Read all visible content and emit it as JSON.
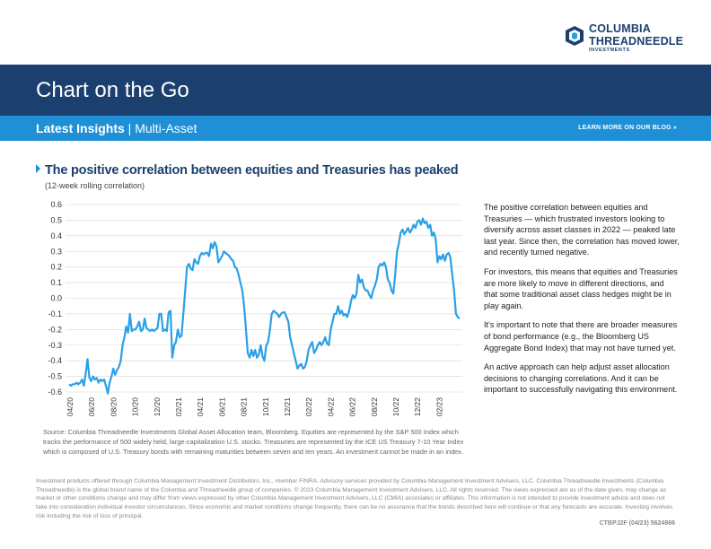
{
  "logo": {
    "line1": "COLUMBIA",
    "line2": "THREADNEEDLE",
    "line3": "INVESTMENTS"
  },
  "header": {
    "title": "Chart on the Go"
  },
  "subbar": {
    "category": "Latest Insights",
    "separator": " | ",
    "topic": "Multi-Asset",
    "link": "LEARN MORE ON OUR BLOG"
  },
  "colors": {
    "navy": "#1b3f6e",
    "blue": "#1f8fd6",
    "line": "#2aa0e6"
  },
  "icons": {
    "heading_arrow": "triangle-right-icon",
    "link_arrow": "double-chevron-right-icon"
  },
  "chart_data": {
    "type": "line",
    "title": "The positive correlation between equities and Treasuries has peaked",
    "subtitle": "(12-week rolling correlation)",
    "ylim": [
      -0.6,
      0.6
    ],
    "yticks": [
      "0.6",
      "0.5",
      "0.4",
      "0.3",
      "0.2",
      "0.1",
      "0.0",
      "-0.1",
      "-0.2",
      "-0.3",
      "-0.4",
      "-0.5",
      "-0.6"
    ],
    "xticks": [
      "04/20",
      "06/20",
      "08/20",
      "10/20",
      "12/20",
      "02/21",
      "04/21",
      "06/21",
      "08/21",
      "10/21",
      "12/21",
      "02/22",
      "04/22",
      "06/22",
      "08/22",
      "10/22",
      "12/22",
      "02/23"
    ],
    "grid": true,
    "series": [
      {
        "name": "",
        "values": [
          -0.55,
          -0.56,
          -0.55,
          -0.55,
          -0.54,
          -0.55,
          -0.54,
          -0.52,
          -0.56,
          -0.48,
          -0.39,
          -0.51,
          -0.53,
          -0.5,
          -0.52,
          -0.51,
          -0.54,
          -0.52,
          -0.53,
          -0.52,
          -0.56,
          -0.61,
          -0.54,
          -0.5,
          -0.45,
          -0.49,
          -0.46,
          -0.44,
          -0.4,
          -0.3,
          -0.25,
          -0.18,
          -0.22,
          -0.1,
          -0.21,
          -0.2,
          -0.2,
          -0.18,
          -0.15,
          -0.21,
          -0.2,
          -0.13,
          -0.19,
          -0.2,
          -0.21,
          -0.2,
          -0.21,
          -0.2,
          -0.19,
          -0.1,
          -0.1,
          -0.21,
          -0.2,
          -0.21,
          -0.09,
          -0.08,
          -0.38,
          -0.3,
          -0.28,
          -0.2,
          -0.25,
          -0.24,
          -0.1,
          0.05,
          0.2,
          0.22,
          0.19,
          0.18,
          0.25,
          0.23,
          0.22,
          0.27,
          0.29,
          0.28,
          0.29,
          0.29,
          0.27,
          0.35,
          0.32,
          0.36,
          0.33,
          0.23,
          0.25,
          0.27,
          0.3,
          0.29,
          0.28,
          0.27,
          0.25,
          0.24,
          0.2,
          0.19,
          0.15,
          0.1,
          0.05,
          -0.05,
          -0.2,
          -0.35,
          -0.38,
          -0.33,
          -0.37,
          -0.33,
          -0.38,
          -0.36,
          -0.3,
          -0.37,
          -0.4,
          -0.3,
          -0.28,
          -0.2,
          -0.1,
          -0.08,
          -0.09,
          -0.1,
          -0.12,
          -0.1,
          -0.09,
          -0.09,
          -0.12,
          -0.15,
          -0.25,
          -0.3,
          -0.35,
          -0.4,
          -0.45,
          -0.43,
          -0.42,
          -0.45,
          -0.44,
          -0.4,
          -0.33,
          -0.3,
          -0.28,
          -0.35,
          -0.33,
          -0.3,
          -0.28,
          -0.3,
          -0.28,
          -0.25,
          -0.29,
          -0.3,
          -0.2,
          -0.15,
          -0.1,
          -0.1,
          -0.05,
          -0.1,
          -0.08,
          -0.11,
          -0.1,
          -0.12,
          -0.08,
          -0.02,
          0.02,
          0.0,
          0.03,
          0.15,
          0.1,
          0.12,
          0.07,
          0.05,
          0.05,
          0.02,
          0.0,
          0.05,
          0.08,
          0.12,
          0.2,
          0.22,
          0.21,
          0.23,
          0.2,
          0.12,
          0.1,
          0.05,
          0.03,
          0.15,
          0.3,
          0.35,
          0.42,
          0.44,
          0.41,
          0.43,
          0.45,
          0.42,
          0.44,
          0.47,
          0.45,
          0.49,
          0.5,
          0.47,
          0.51,
          0.48,
          0.49,
          0.45,
          0.47,
          0.4,
          0.42,
          0.38,
          0.23,
          0.27,
          0.25,
          0.28,
          0.24,
          0.28,
          0.29,
          0.26,
          0.15,
          0.05,
          -0.1,
          -0.12,
          -0.13
        ]
      }
    ]
  },
  "axis_label_color": "#333",
  "source": "Source: Columbia Threadneedle Investments Global Asset Allocation team, Bloomberg. Equities are represented by the S&P 500 Index which tracks the performance of 500 widely held, large-capitalization U.S. stocks. Treasuries are represented by the ICE US Treasury 7-10 Year Index which is composed of U.S. Treasury bonds with remaining maturities between seven and ten years. An investment cannot be made in an index.",
  "body": [
    "The positive correlation between equities and Treasuries — which frustrated investors looking to diversify across asset classes in 2022 — peaked late last year. Since then, the correlation has moved lower, and recently turned negative.",
    "For investors, this means that equities and Treasuries are more likely to move in different directions, and that some traditional asset class hedges might be in play again.",
    "It’s important to note that there are broader measures of bond performance (e.g., the Bloomberg US Aggregate Bond Index) that may not have turned yet.",
    "An active approach can help adjust asset allocation decisions to changing correlations. And it can be important to successfully navigating this environment."
  ],
  "disclaimer": "Investment products offered through Columbia Management Investment Distributors, Inc., member FINRA. Advisory services provided by Columbia Management Investment Advisers, LLC. Columbia Threadneedle Investments (Columbia Threadneedle) is the global brand name of the Columbia and Threadneedle group of companies. © 2023 Columbia Management Investment Advisers, LLC. All rights reserved. The views expressed are as of the date given, may change as market or other conditions change and may differ from views expressed by other Columbia Management Investment Advisers, LLC (CMIA) associates or affiliates. This information is not intended to provide investment advice and does not take into consideration individual investor circumstances. Since economic and market conditions change frequently, there can be no assurance that the trends described here will continue or that any forecasts are accurate. Investing involves risk including the risk of loss of principal.",
  "code": "CTBPJ2F (04/23) 5624866"
}
